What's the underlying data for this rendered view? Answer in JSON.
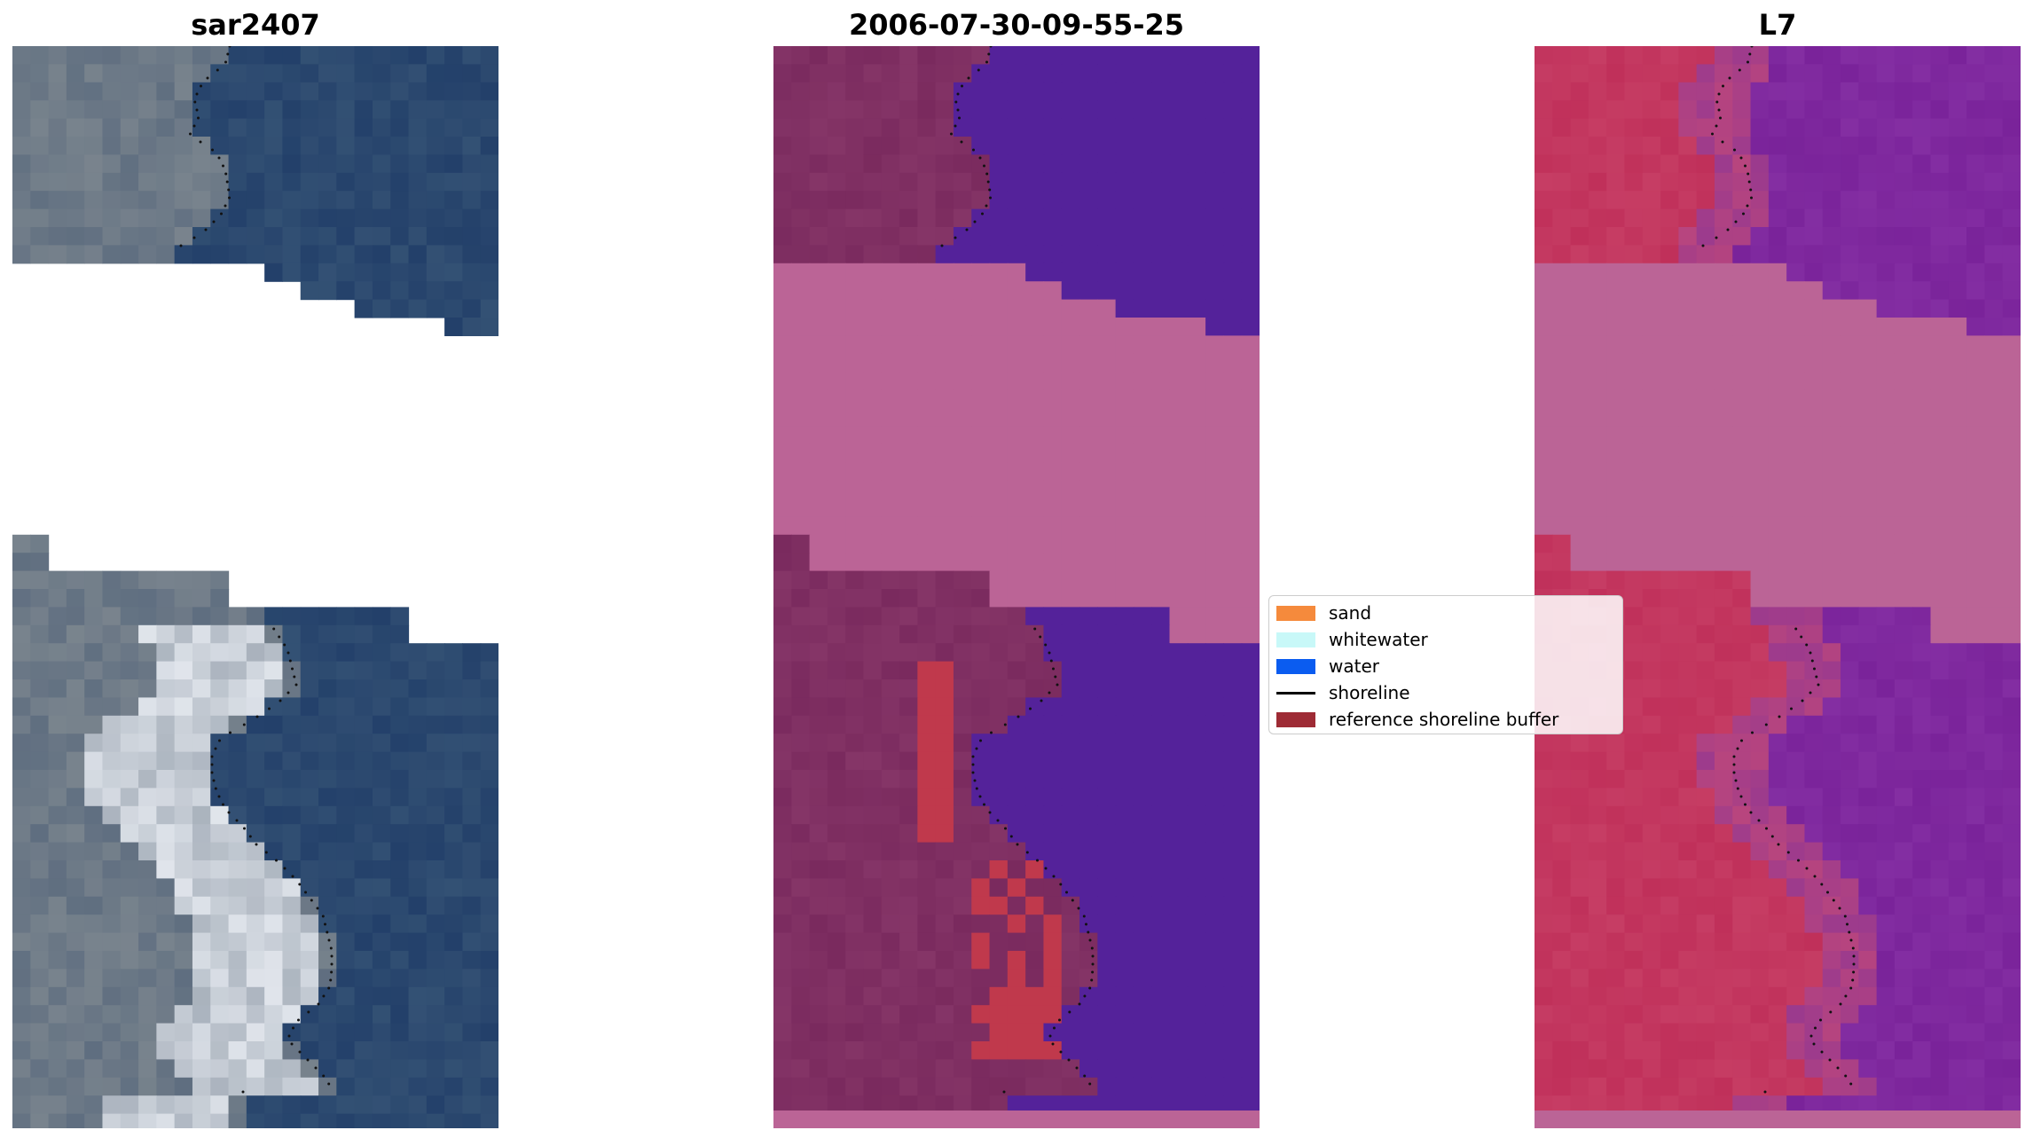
{
  "panels": [
    {
      "title": "sar2407"
    },
    {
      "title": "2006-07-30-09-55-25"
    },
    {
      "title": "L7"
    }
  ],
  "legend": {
    "items": [
      {
        "label": "sand",
        "kind": "patch",
        "color": "#f58a3c"
      },
      {
        "label": "whitewater",
        "kind": "patch",
        "color": "#c8f8f8"
      },
      {
        "label": "water",
        "kind": "patch",
        "color": "#0a5cf0"
      },
      {
        "label": "shoreline",
        "kind": "line",
        "color": "#000000"
      },
      {
        "label": "reference shoreline buffer",
        "kind": "patch",
        "color": "#9e2b35"
      }
    ]
  },
  "colors": {
    "rgb_land": "#6f7e8a",
    "rgb_water": "#2c4a73",
    "class_land": "#7a2a5e",
    "class_water": "#54229a",
    "class_nodata": "#bb6496",
    "class_buffer": "#c0394c",
    "mndwi_land": "#c0305a",
    "mndwi_water": "#7a239a",
    "mndwi_nodata": "#bb6496"
  }
}
